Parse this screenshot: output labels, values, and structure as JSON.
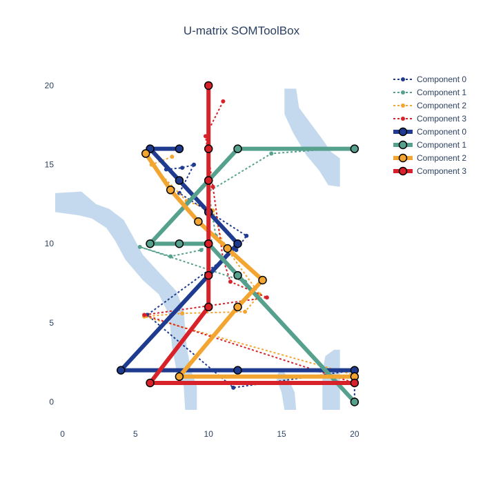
{
  "chart_data": {
    "type": "line",
    "title": "U-matrix SOMToolBox",
    "xlabel": "",
    "ylabel": "",
    "xlim": [
      -0.5,
      21
    ],
    "ylim": [
      -1.2,
      21.7
    ],
    "x_ticks": [
      0,
      5,
      10,
      15,
      20
    ],
    "y_ticks": [
      0,
      5,
      10,
      15,
      20
    ],
    "grid": false,
    "legend_position": "top-right",
    "umatrix_bands": [
      {
        "points": [
          [
            -0.5,
            13.2
          ],
          [
            1.3,
            13.3
          ],
          [
            2.3,
            12.5
          ],
          [
            3.2,
            12.2
          ],
          [
            4.2,
            11.5
          ],
          [
            4.8,
            10.5
          ],
          [
            5.5,
            9.3
          ],
          [
            6.8,
            8.0
          ],
          [
            7.8,
            7.0
          ],
          [
            8.3,
            5.8
          ],
          [
            8.5,
            3.5
          ],
          [
            8.8,
            2.0
          ],
          [
            9.2,
            1.0
          ],
          [
            9.2,
            -0.5
          ],
          [
            8.4,
            -0.5
          ],
          [
            8.3,
            1.0
          ],
          [
            7.8,
            2.0
          ],
          [
            7.5,
            3.5
          ],
          [
            7.3,
            5.5
          ],
          [
            6.6,
            6.8
          ],
          [
            5.5,
            7.7
          ],
          [
            4.3,
            9.0
          ],
          [
            3.6,
            10.2
          ],
          [
            3.0,
            11.0
          ],
          [
            2.0,
            11.6
          ],
          [
            1.1,
            11.8
          ],
          [
            -0.5,
            12.0
          ]
        ]
      },
      {
        "points": [
          [
            15.2,
            19.8
          ],
          [
            16.0,
            19.8
          ],
          [
            16.2,
            18.6
          ],
          [
            17.0,
            17.6
          ],
          [
            17.8,
            16.6
          ],
          [
            18.4,
            15.8
          ],
          [
            19.0,
            15.4
          ],
          [
            19.0,
            13.6
          ],
          [
            18.2,
            13.7
          ],
          [
            17.6,
            14.6
          ],
          [
            16.7,
            15.6
          ],
          [
            15.8,
            17.0
          ],
          [
            15.2,
            18.2
          ]
        ]
      },
      {
        "points": [
          [
            15.2,
            -0.5
          ],
          [
            16.0,
            -0.5
          ],
          [
            15.9,
            0.6
          ],
          [
            15.4,
            1.6
          ],
          [
            15.0,
            2.1
          ],
          [
            14.6,
            1.6
          ],
          [
            15.0,
            0.6
          ]
        ]
      },
      {
        "points": [
          [
            17.8,
            -0.5
          ],
          [
            19.0,
            -0.5
          ],
          [
            19.0,
            3.3
          ],
          [
            18.6,
            3.3
          ],
          [
            18.0,
            2.9
          ],
          [
            17.8,
            1.9
          ]
        ]
      }
    ],
    "series": [
      {
        "name": "Component 0",
        "style": "dotted",
        "color": "#1f3b8f",
        "x": [
          7.1,
          8.2,
          9.0,
          8.0,
          12.6,
          11.9,
          5.8,
          11.7,
          20,
          20
        ],
        "y": [
          14.7,
          14.8,
          15.0,
          13.2,
          10.5,
          9.6,
          5.5,
          0.9,
          2.0,
          0.0
        ]
      },
      {
        "name": "Component 1",
        "style": "dotted",
        "color": "#56a08e",
        "x": [
          20,
          14.3,
          10.0,
          10.5,
          9.5,
          7.4,
          5.3,
          12.5,
          20
        ],
        "y": [
          16.1,
          15.7,
          13.3,
          10.5,
          9.6,
          9.2,
          9.8,
          7.6,
          0.0
        ]
      },
      {
        "name": "Component 2",
        "style": "dotted",
        "color": "#f2a531",
        "x": [
          7.5,
          6.1,
          8.5,
          10.3,
          11.0,
          13.5,
          12.5,
          8.2,
          5.6,
          20
        ],
        "y": [
          15.5,
          15.0,
          12.7,
          12.1,
          10.0,
          6.8,
          5.7,
          5.6,
          5.4,
          1.7
        ]
      },
      {
        "name": "Component 3",
        "style": "dotted",
        "color": "#d62228",
        "x": [
          11.0,
          9.8,
          10.3,
          11.0,
          11.5,
          14.0,
          5.6,
          20
        ],
        "y": [
          19.0,
          16.8,
          13.6,
          9.0,
          7.6,
          6.6,
          5.5,
          1.2
        ]
      },
      {
        "name": "Component 0",
        "style": "solid",
        "color": "#1f3b8f",
        "x": [
          8,
          6,
          8,
          10,
          12,
          4,
          12,
          20
        ],
        "y": [
          16,
          16,
          14,
          12,
          10,
          2,
          2,
          2
        ]
      },
      {
        "name": "Component 1",
        "style": "solid",
        "color": "#56a08e",
        "x": [
          20,
          12,
          10,
          6,
          8,
          10,
          12,
          20
        ],
        "y": [
          16,
          16,
          14,
          10,
          10,
          10,
          8,
          0
        ]
      },
      {
        "name": "Component 2",
        "style": "solid",
        "color": "#f2a531",
        "x": [
          5.7,
          7.4,
          9.3,
          11.3,
          13.7,
          12.0,
          8.0,
          20
        ],
        "y": [
          15.7,
          13.4,
          11.4,
          9.7,
          7.7,
          6.0,
          1.6,
          1.6
        ]
      },
      {
        "name": "Component 3",
        "style": "solid",
        "color": "#d62228",
        "x": [
          10,
          10,
          10,
          10,
          10,
          10,
          6,
          20
        ],
        "y": [
          20,
          16,
          14,
          10,
          8,
          6,
          1.2,
          1.2
        ]
      }
    ]
  }
}
